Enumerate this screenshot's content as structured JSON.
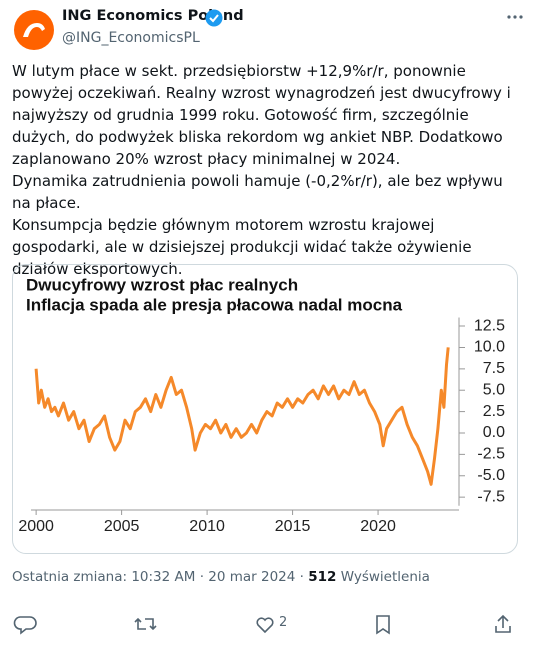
{
  "tweet": {
    "author": "ING Economics Poland",
    "handle": "@ING_EconomicsPL",
    "paragraphs": [
      "W lutym płace w sekt. przedsiębiorstw +12,9%r/r, ponownie powyżej oczekiwań. Realny wzrost wynagrodzeń jest dwucyfrowy i najwyższy od grudnia 1999 roku. Gotowość firm, szczególnie dużych, do podwyżek bliska rekordom wg ankiet NBP. Dodatkowo zaplanowano 20% wzrost płacy minimalnej w 2024.",
      "Dynamika zatrudnienia powoli hamuje (-0,2%r/r), ale bez wpływu na płace.",
      "Konsumpcja będzie głównym motorem wzrostu krajowej gospodarki, ale w dzisiejszej produkcji widać także ożywienie działów eksportowych."
    ],
    "meta": "Ostatnia zmiana: 10:32 AM · 20 mar 2024 ·",
    "views": "512",
    "views_label": "Wyświetlenia",
    "likes": "2"
  },
  "chart_data": {
    "type": "line",
    "title": "Dwucyfrowy wzrost płac realnych",
    "subtitle": "Inflacja spada ale presja płacowa nadal mocna",
    "x": [
      2000.0,
      2000.15,
      2000.3,
      2000.5,
      2000.7,
      2000.9,
      2001.1,
      2001.3,
      2001.6,
      2001.9,
      2002.2,
      2002.5,
      2002.8,
      2003.1,
      2003.4,
      2003.7,
      2004.0,
      2004.3,
      2004.6,
      2004.9,
      2005.2,
      2005.5,
      2005.8,
      2006.1,
      2006.4,
      2006.7,
      2007.0,
      2007.3,
      2007.6,
      2007.9,
      2008.2,
      2008.5,
      2008.8,
      2009.1,
      2009.3,
      2009.6,
      2009.9,
      2010.2,
      2010.5,
      2010.8,
      2011.1,
      2011.4,
      2011.7,
      2012.0,
      2012.3,
      2012.6,
      2012.9,
      2013.2,
      2013.5,
      2013.8,
      2014.1,
      2014.4,
      2014.7,
      2015.0,
      2015.3,
      2015.6,
      2015.9,
      2016.2,
      2016.5,
      2016.8,
      2017.1,
      2017.4,
      2017.7,
      2018.0,
      2018.3,
      2018.6,
      2018.9,
      2019.2,
      2019.5,
      2019.8,
      2020.1,
      2020.3,
      2020.5,
      2020.8,
      2021.1,
      2021.4,
      2021.7,
      2022.0,
      2022.3,
      2022.6,
      2022.9,
      2023.1,
      2023.3,
      2023.5,
      2023.7,
      2023.85,
      2024.0,
      2024.1
    ],
    "series": [
      {
        "color": "#f5892a",
        "values": [
          7.5,
          3.5,
          5,
          3,
          4,
          2.5,
          3,
          2,
          3.5,
          1.5,
          2.5,
          0.5,
          1.5,
          -1,
          0.5,
          1,
          2,
          -0.5,
          -2,
          -1,
          1.5,
          0.5,
          2.5,
          3,
          4,
          2.5,
          4.5,
          3,
          5,
          6.5,
          4.5,
          5,
          3,
          0.5,
          -2,
          0,
          1,
          0.5,
          1.5,
          0,
          1,
          -0.5,
          0.5,
          -0.5,
          0,
          1,
          0,
          1.5,
          2.5,
          2,
          3.5,
          3,
          4,
          3,
          4,
          3.5,
          4.5,
          5,
          4,
          5.5,
          4.5,
          5.5,
          4,
          5,
          4.5,
          6,
          4.5,
          5,
          3.5,
          2.5,
          1,
          -1.5,
          0.5,
          1.5,
          2.5,
          3,
          1,
          -0.5,
          -1.5,
          -3,
          -4.5,
          -6,
          -3,
          0.5,
          5,
          3,
          8,
          10
        ]
      }
    ],
    "xlim": [
      1999.7,
      2024.5
    ],
    "xticks": [
      2000,
      2005,
      2010,
      2015,
      2020
    ],
    "ylim": [
      -8.5,
      13.5
    ],
    "yticks": [
      12.5,
      {
        "value": 10,
        "label": "10.0"
      },
      7.5,
      {
        "value": 5,
        "label": "5.0"
      },
      2.5,
      {
        "value": 0,
        "label": "0.0"
      },
      -2.5,
      {
        "value": -5,
        "label": "-5.0"
      },
      -7.5
    ]
  }
}
